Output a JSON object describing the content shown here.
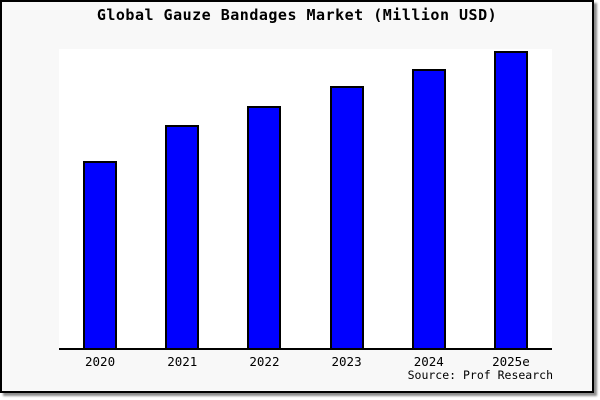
{
  "frame": {
    "page_background": "#ffffff",
    "background": "#f8f8f8",
    "border_color": "#000000",
    "shadow_color": "#999999"
  },
  "chart_data": {
    "type": "bar",
    "title": "Global Gauze Bandages Market (Million USD)",
    "categories": [
      "2020",
      "2021",
      "2022",
      "2023",
      "2024",
      "2025e"
    ],
    "values": [
      62.8,
      75.0,
      81.6,
      88.0,
      93.9,
      100
    ],
    "values_note": "y-axis is unlabeled; values estimated from bar heights as relative index with 2025e = 100",
    "xlabel": "",
    "ylabel": "",
    "ylim": [
      0,
      100.6
    ],
    "grid": false,
    "legend": null,
    "bar_color": "#0000ff",
    "bar_edge_color": "#000000",
    "plot_background": "#ffffff",
    "source": "Source: Prof Research"
  }
}
